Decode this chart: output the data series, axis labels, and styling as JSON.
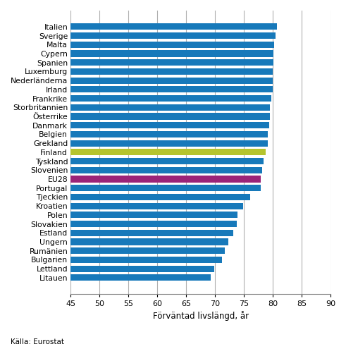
{
  "countries": [
    "Litauen",
    "Lettland",
    "Bulgarien",
    "Rumänien",
    "Ungern",
    "Estland",
    "Slovakien",
    "Polen",
    "Kroatien",
    "Tjeckien",
    "Portugal",
    "EU28",
    "Slovenien",
    "Tyskland",
    "Finland",
    "Grekland",
    "Belgien",
    "Danmark",
    "Österrike",
    "Storbritannien",
    "Frankrike",
    "Irland",
    "Nederländerna",
    "Luxemburg",
    "Spanien",
    "Cypern",
    "Malta",
    "Sverige",
    "Italien"
  ],
  "values": [
    69.2,
    69.8,
    71.2,
    71.7,
    72.3,
    73.2,
    73.8,
    73.9,
    74.9,
    76.1,
    77.9,
    77.9,
    78.2,
    78.4,
    78.8,
    79.1,
    79.2,
    79.4,
    79.5,
    79.5,
    79.7,
    80.0,
    80.0,
    80.0,
    80.1,
    80.1,
    80.2,
    80.5,
    80.7
  ],
  "bar_colors": [
    "#1779ba",
    "#1779ba",
    "#1779ba",
    "#1779ba",
    "#1779ba",
    "#1779ba",
    "#1779ba",
    "#1779ba",
    "#1779ba",
    "#1779ba",
    "#1779ba",
    "#9b2478",
    "#1779ba",
    "#1779ba",
    "#b5c42e",
    "#1779ba",
    "#1779ba",
    "#1779ba",
    "#1779ba",
    "#1779ba",
    "#1779ba",
    "#1779ba",
    "#1779ba",
    "#1779ba",
    "#1779ba",
    "#1779ba",
    "#1779ba",
    "#1779ba",
    "#1779ba"
  ],
  "xmin": 45,
  "xmax": 90,
  "xticks": [
    45,
    50,
    55,
    60,
    65,
    70,
    75,
    80,
    85,
    90
  ],
  "xlabel": "Förväntad livslängd, år",
  "source": "Källa: Eurostat",
  "background_color": "#ffffff",
  "grid_color": "#b0b0b0",
  "bar_height": 0.72,
  "label_fontsize": 7.8,
  "xlabel_fontsize": 8.5,
  "tick_fontsize": 8.0,
  "source_fontsize": 7.5
}
